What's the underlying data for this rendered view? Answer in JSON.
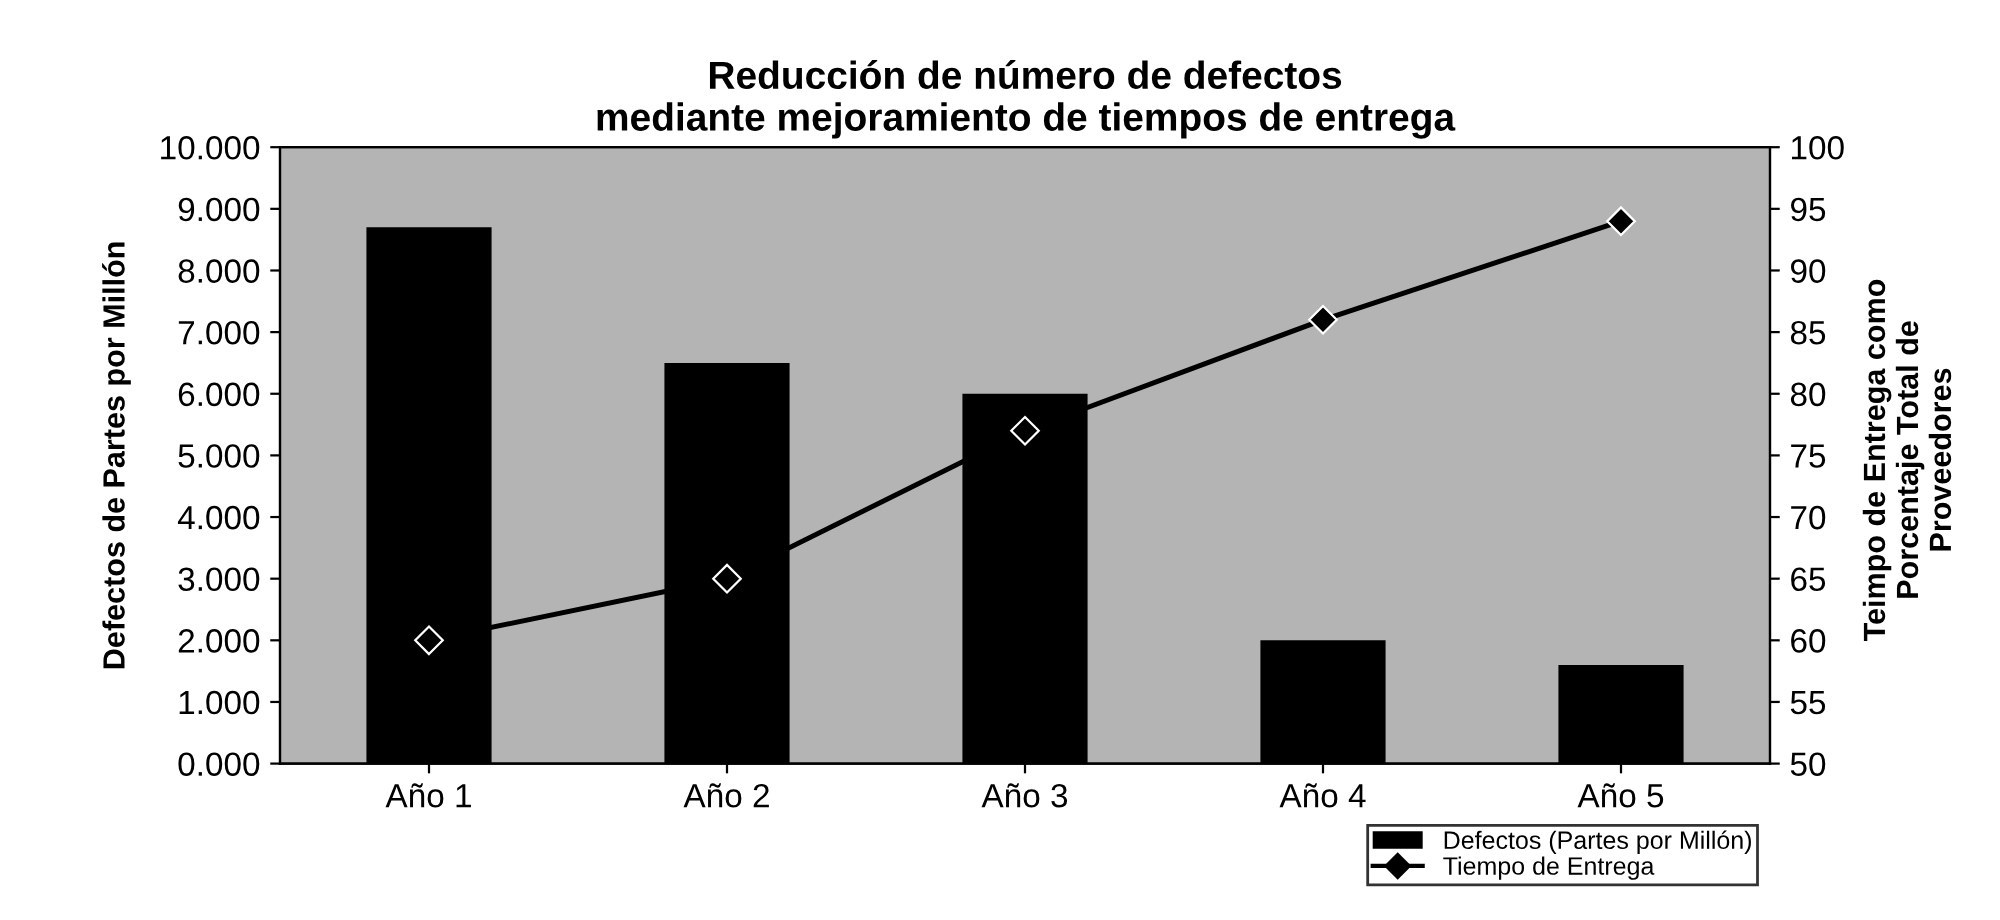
{
  "chart_data": {
    "type": "bar",
    "title": "Reducción de número de defectos\nmediante mejoramiento de tiempos de entrega",
    "categories": [
      "Año 1",
      "Año 2",
      "Año 3",
      "Año 4",
      "Año 5"
    ],
    "series": [
      {
        "name": "Defectos (Partes por Millón)",
        "color": "#000000",
        "values": [
          8.7,
          6.5,
          6.0,
          2.0,
          1.6
        ]
      },
      {
        "name": "Tiempo de Entrega",
        "type": "line",
        "axis": "y2",
        "color": "#000000",
        "marker": "diamond",
        "values": [
          60,
          65,
          77,
          86,
          94
        ]
      }
    ],
    "ylabel": "Defectos de Partes por Millón",
    "y2label": "Teimpo de Entrega como\nPorcentaje Total de\nProveedores",
    "ylim": [
      0,
      10
    ],
    "yticks": [
      {
        "value": 0,
        "label": "0.000"
      },
      {
        "value": 1,
        "label": "1.000"
      },
      {
        "value": 2,
        "label": "2.000"
      },
      {
        "value": 3,
        "label": "3.000"
      },
      {
        "value": 4,
        "label": "4.000"
      },
      {
        "value": 5,
        "label": "5.000"
      },
      {
        "value": 6,
        "label": "6.000"
      },
      {
        "value": 7,
        "label": "7.000"
      },
      {
        "value": 8,
        "label": "8.000"
      },
      {
        "value": 9,
        "label": "9.000"
      },
      {
        "value": 10,
        "label": "10.000"
      }
    ],
    "y2lim": [
      50,
      100
    ],
    "y2ticks": [
      50,
      55,
      60,
      65,
      70,
      75,
      80,
      85,
      90,
      95,
      100
    ],
    "legend": "bottom right"
  }
}
